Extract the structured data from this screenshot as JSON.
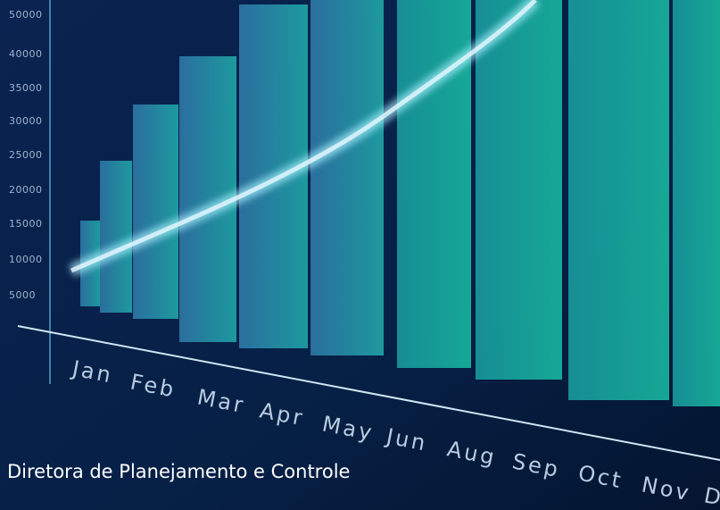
{
  "axis": {
    "labels": [
      "50000",
      "40000",
      "35000",
      "30000",
      "25000",
      "20000",
      "15000",
      "10000",
      "5000"
    ]
  },
  "months": [
    "Jan",
    "Feb",
    "Mar",
    "Apr",
    "May",
    "Jun",
    "Aug",
    "Sep",
    "Oct",
    "Nov",
    "D"
  ],
  "caption": "Diretora de Planejamento e Controle"
}
